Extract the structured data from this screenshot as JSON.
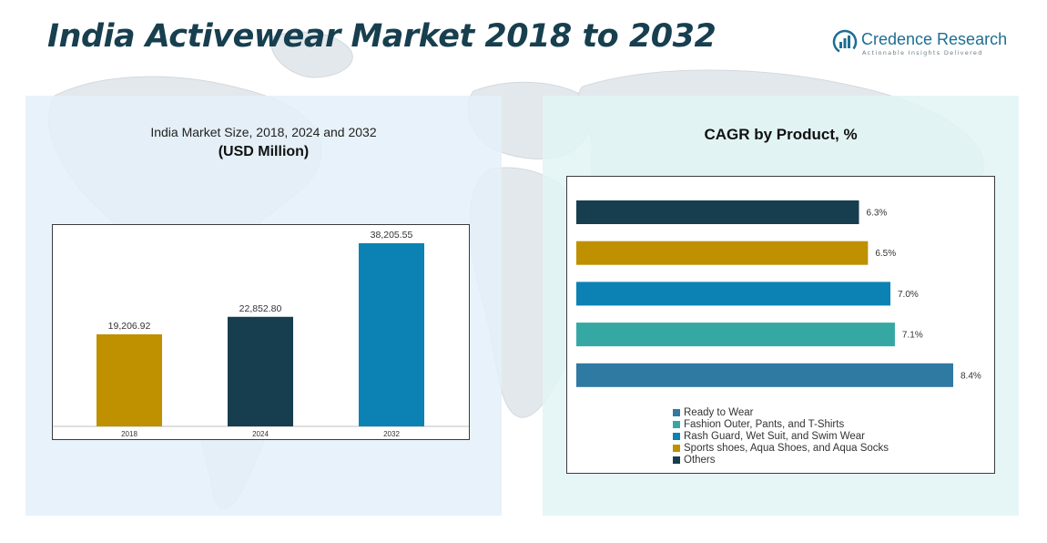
{
  "header": {
    "title": "India Activewear Market 2018 to 2032",
    "logo_name": "Credence Research",
    "logo_tagline": "Actionable Insights Delivered"
  },
  "chart_data": [
    {
      "type": "bar",
      "title": "India Market Size, 2018, 2024 and 2032",
      "subtitle": "(USD Million)",
      "categories": [
        "2018",
        "2024",
        "2032"
      ],
      "values": [
        19206.92,
        22852.8,
        38205.55
      ],
      "value_labels": [
        "19,206.92",
        "22,852.80",
        "38,205.55"
      ],
      "colors": [
        "#bf9000",
        "#163e4f",
        "#0b82b3"
      ],
      "ylim": [
        0,
        42000
      ],
      "grid": false
    },
    {
      "type": "bar",
      "orientation": "horizontal",
      "title": "CAGR by Product, %",
      "categories": [
        "Others",
        "Sports shoes, Aqua Shoes, and Aqua Socks",
        "Rash Guard, Wet Suit, and Swim Wear",
        "Fashion Outer, Pants, and T-Shirts",
        "Ready to Wear"
      ],
      "values": [
        6.3,
        6.5,
        7.0,
        7.1,
        8.4
      ],
      "value_labels": [
        "6.3%",
        "6.5%",
        "7.0%",
        "7.1%",
        "8.4%"
      ],
      "colors": [
        "#163e4f",
        "#bf9000",
        "#0b82b3",
        "#36a8a4",
        "#2f7aa3"
      ],
      "xlim": [
        0,
        8.4
      ],
      "legend": {
        "position": "bottom",
        "items": [
          {
            "label": "Ready to Wear",
            "color": "#2f7aa3"
          },
          {
            "label": "Fashion Outer, Pants, and T-Shirts",
            "color": "#36a8a4"
          },
          {
            "label": "Rash Guard, Wet Suit, and Swim Wear",
            "color": "#0b82b3"
          },
          {
            "label": "Sports shoes, Aqua Shoes, and Aqua Socks",
            "color": "#bf9000"
          },
          {
            "label": "Others",
            "color": "#163e4f"
          }
        ]
      },
      "grid": false
    }
  ]
}
